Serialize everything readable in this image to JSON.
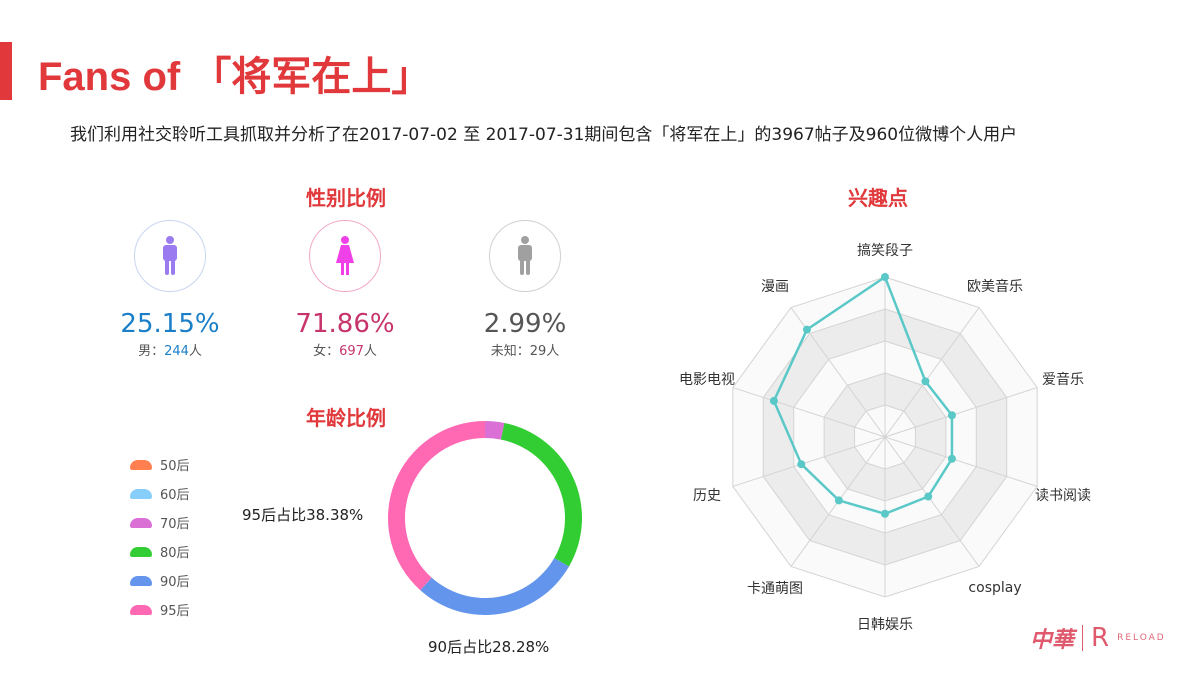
{
  "header": {
    "title": "Fans of 「将军在上」",
    "subtitle": "我们利用社交聆听工具抓取并分析了在2017-07-02 至 2017-07-31期间包含「将军在上」的3967帖子及960位微博个人用户"
  },
  "gender": {
    "title": "性别比例",
    "items": [
      {
        "pct": "25.15%",
        "label": "男：",
        "count": "244",
        "unit": "人",
        "color": "#1a7fc8",
        "icon_color": "#9b7cf0",
        "ring": "#c8d6f0",
        "icon": "male-icon"
      },
      {
        "pct": "71.86%",
        "label": "女：",
        "count": "697",
        "unit": "人",
        "color": "#c7336b",
        "icon_color": "#f040e8",
        "ring": "#f3a9c8",
        "icon": "female-icon"
      },
      {
        "pct": "2.99%",
        "label": "未知：",
        "count": "29",
        "unit": "人",
        "color": "#555555",
        "icon_color": "#a0a0a0",
        "ring": "#d0d0d0",
        "icon": "unknown-person-icon"
      }
    ]
  },
  "age": {
    "title": "年龄比例",
    "label_95": "95后占比38.38%",
    "label_90": "90后占比28.28%"
  },
  "interest": {
    "title": "兴趣点"
  },
  "logo": {
    "text1": "中華",
    "text2": "RELOAD"
  },
  "chart_data": [
    {
      "type": "pie",
      "donut": true,
      "categories": [
        "50后",
        "60后",
        "70后",
        "80后",
        "90后",
        "95后"
      ],
      "values": [
        0,
        0,
        3.2,
        30.14,
        28.28,
        38.38
      ],
      "colors": [
        "#ff7f50",
        "#87cefa",
        "#da70d6",
        "#32cd32",
        "#6495ed",
        "#ff69b4"
      ],
      "legend": "left"
    },
    {
      "type": "radar",
      "categories": [
        "搞笑段子",
        "欧美音乐",
        "爱音乐",
        "读书阅读",
        "cosplay",
        "日韩娱乐",
        "卡通萌图",
        "历史",
        "电影电视",
        "漫画"
      ],
      "values": [
        1.0,
        0.43,
        0.44,
        0.44,
        0.46,
        0.48,
        0.49,
        0.55,
        0.73,
        0.83
      ],
      "range": [
        0,
        1
      ],
      "levels": 5,
      "color": "#5bc8c8"
    }
  ]
}
